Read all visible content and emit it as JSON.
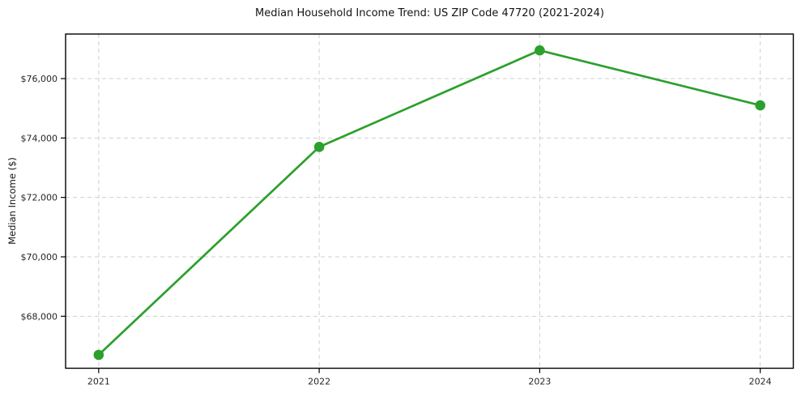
{
  "chart_data": {
    "type": "line",
    "title": "Median Household Income Trend: US ZIP Code 47720 (2021-2024)",
    "xlabel": "",
    "ylabel": "Median Income ($)",
    "series": [
      {
        "name": "Median Household Income",
        "x": [
          2021,
          2022,
          2023,
          2024
        ],
        "values": [
          66700,
          73700,
          76950,
          75100
        ]
      }
    ],
    "xticks": [
      2021,
      2022,
      2023,
      2024
    ],
    "xtick_labels": [
      "2021",
      "2022",
      "2023",
      "2024"
    ],
    "yticks": [
      68000,
      70000,
      72000,
      74000,
      76000
    ],
    "ytick_labels": [
      "$68,000",
      "$70,000",
      "$72,000",
      "$74,000",
      "$76,000"
    ],
    "xlim": [
      2020.85,
      2024.15
    ],
    "ylim": [
      66250,
      77500
    ],
    "grid": true,
    "legend": "none",
    "line_color": "#2ca02c",
    "marker_color": "#2ca02c",
    "grid_color": "#cfcfcf",
    "spine_color": "#000000",
    "tick_text_color": "#262626",
    "background_color": "#ffffff"
  }
}
